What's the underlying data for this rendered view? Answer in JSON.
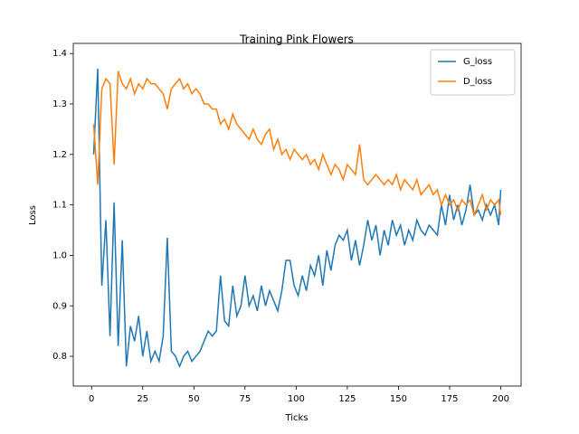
{
  "chart_data": {
    "type": "line",
    "title": "Training Pink Flowers",
    "x_label": "Ticks",
    "y_label": "Loss",
    "x": [
      1,
      3,
      5,
      7,
      9,
      11,
      13,
      15,
      17,
      19,
      21,
      23,
      25,
      27,
      29,
      31,
      33,
      35,
      37,
      39,
      41,
      43,
      45,
      47,
      49,
      51,
      53,
      55,
      57,
      59,
      61,
      63,
      65,
      67,
      69,
      71,
      73,
      75,
      77,
      79,
      81,
      83,
      85,
      87,
      89,
      91,
      93,
      95,
      97,
      99,
      101,
      103,
      105,
      107,
      109,
      111,
      113,
      115,
      117,
      119,
      121,
      123,
      125,
      127,
      129,
      131,
      133,
      135,
      137,
      139,
      141,
      143,
      145,
      147,
      149,
      151,
      153,
      155,
      157,
      159,
      161,
      163,
      165,
      167,
      169,
      171,
      173,
      175,
      177,
      179,
      181,
      183,
      185,
      187,
      189,
      191,
      193,
      195,
      197,
      199,
      200
    ],
    "series": [
      {
        "name": "G_loss",
        "color": "#1f77b4",
        "values": [
          1.2,
          1.37,
          0.94,
          1.07,
          0.84,
          1.105,
          0.82,
          1.03,
          0.78,
          0.86,
          0.83,
          0.88,
          0.8,
          0.85,
          0.79,
          0.81,
          0.79,
          0.84,
          1.035,
          0.81,
          0.8,
          0.78,
          0.8,
          0.81,
          0.79,
          0.8,
          0.81,
          0.83,
          0.85,
          0.84,
          0.85,
          0.96,
          0.87,
          0.86,
          0.94,
          0.88,
          0.9,
          0.96,
          0.9,
          0.92,
          0.89,
          0.94,
          0.9,
          0.93,
          0.91,
          0.89,
          0.93,
          0.99,
          0.99,
          0.94,
          0.92,
          0.96,
          0.93,
          0.98,
          0.96,
          1.0,
          0.94,
          1.01,
          0.97,
          1.02,
          1.04,
          1.03,
          1.05,
          0.99,
          1.03,
          0.98,
          1.02,
          1.07,
          1.03,
          1.06,
          1.0,
          1.05,
          1.02,
          1.07,
          1.04,
          1.06,
          1.02,
          1.05,
          1.03,
          1.07,
          1.05,
          1.04,
          1.06,
          1.05,
          1.04,
          1.1,
          1.06,
          1.12,
          1.07,
          1.1,
          1.06,
          1.09,
          1.14,
          1.08,
          1.09,
          1.07,
          1.1,
          1.08,
          1.1,
          1.06,
          1.13
        ]
      },
      {
        "name": "D_loss",
        "color": "#ff7f0e",
        "values": [
          1.26,
          1.14,
          1.33,
          1.35,
          1.34,
          1.18,
          1.365,
          1.34,
          1.33,
          1.35,
          1.32,
          1.34,
          1.33,
          1.35,
          1.34,
          1.34,
          1.33,
          1.32,
          1.29,
          1.33,
          1.34,
          1.35,
          1.33,
          1.34,
          1.32,
          1.33,
          1.32,
          1.3,
          1.3,
          1.29,
          1.29,
          1.26,
          1.27,
          1.25,
          1.28,
          1.26,
          1.25,
          1.24,
          1.23,
          1.25,
          1.23,
          1.22,
          1.24,
          1.25,
          1.21,
          1.23,
          1.2,
          1.21,
          1.19,
          1.21,
          1.2,
          1.19,
          1.2,
          1.18,
          1.19,
          1.17,
          1.2,
          1.18,
          1.16,
          1.18,
          1.17,
          1.15,
          1.18,
          1.17,
          1.16,
          1.22,
          1.15,
          1.14,
          1.15,
          1.16,
          1.15,
          1.14,
          1.15,
          1.14,
          1.16,
          1.13,
          1.15,
          1.14,
          1.13,
          1.15,
          1.12,
          1.13,
          1.14,
          1.12,
          1.13,
          1.1,
          1.12,
          1.1,
          1.11,
          1.09,
          1.11,
          1.1,
          1.11,
          1.08,
          1.1,
          1.12,
          1.09,
          1.11,
          1.1,
          1.11,
          1.08
        ]
      }
    ],
    "xlim": [
      -8.95,
      209.95
    ],
    "ylim": [
      0.741,
      1.42
    ],
    "xticks": [
      0,
      25,
      50,
      75,
      100,
      125,
      150,
      175,
      200
    ],
    "yticks": [
      0.8,
      0.9,
      {
        "value": 1,
        "label": "1.0"
      },
      1.1,
      1.2,
      1.3,
      1.4
    ],
    "legend": "upper right"
  }
}
